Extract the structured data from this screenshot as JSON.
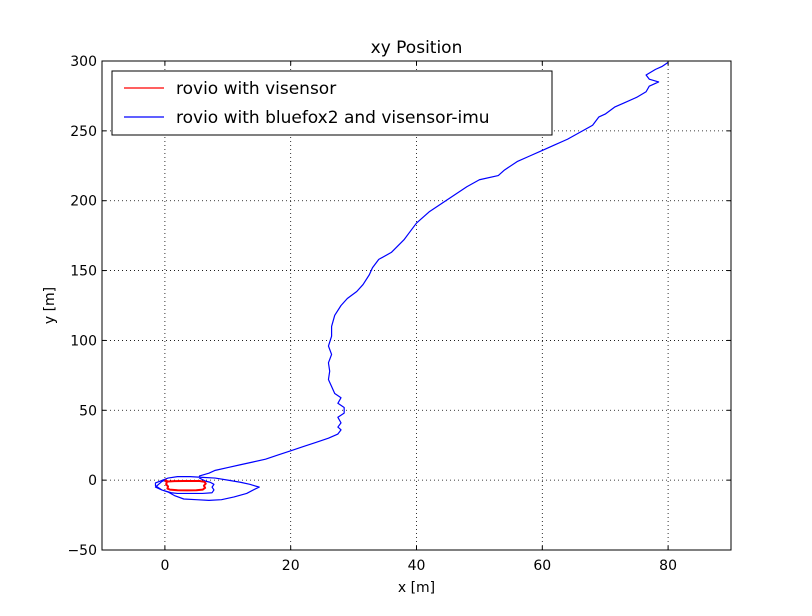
{
  "chart_data": {
    "type": "line",
    "title": "xy Position",
    "xlabel": "x [m]",
    "ylabel": "y [m]",
    "xlim": [
      -10,
      90
    ],
    "ylim": [
      -50,
      300
    ],
    "xticks": [
      0,
      20,
      40,
      60,
      80
    ],
    "yticks": [
      -50,
      0,
      50,
      100,
      150,
      200,
      250,
      300
    ],
    "xtick_labels": [
      "0",
      "20",
      "40",
      "60",
      "80"
    ],
    "ytick_labels": [
      "−50",
      "0",
      "50",
      "100",
      "150",
      "200",
      "250",
      "300"
    ],
    "grid": true,
    "legend_position": "top-left",
    "series": [
      {
        "name": "rovio with visensor",
        "color": "#ff0000",
        "points": [
          [
            0,
            0
          ],
          [
            0.3,
            -1.5
          ],
          [
            0.2,
            -3
          ],
          [
            0.5,
            -4.5
          ],
          [
            0.4,
            -6
          ],
          [
            0.8,
            -6.8
          ],
          [
            2,
            -7.2
          ],
          [
            3.5,
            -7.3
          ],
          [
            5,
            -7.2
          ],
          [
            6,
            -6.8
          ],
          [
            6.4,
            -5.5
          ],
          [
            6.2,
            -4
          ],
          [
            6.5,
            -2.5
          ],
          [
            6.3,
            -1.2
          ],
          [
            5.5,
            -0.6
          ],
          [
            4.5,
            -0.6
          ],
          [
            3,
            -0.6
          ],
          [
            1.5,
            -0.7
          ],
          [
            0.5,
            -1
          ],
          [
            0,
            0
          ]
        ]
      },
      {
        "name": "rovio with bluefox2 and visensor-imu",
        "color": "#0000ff",
        "points": [
          [
            0,
            0
          ],
          [
            -0.5,
            -1
          ],
          [
            -1,
            -3
          ],
          [
            -1.5,
            -5
          ],
          [
            -0.5,
            -7
          ],
          [
            0.5,
            -8.5
          ],
          [
            1.5,
            -11
          ],
          [
            3,
            -13.5
          ],
          [
            5,
            -14
          ],
          [
            7,
            -14.5
          ],
          [
            9,
            -14
          ],
          [
            11,
            -12
          ],
          [
            13,
            -9.5
          ],
          [
            14.5,
            -6
          ],
          [
            15,
            -5
          ],
          [
            13.5,
            -3
          ],
          [
            12,
            -1.5
          ],
          [
            10,
            0
          ],
          [
            8,
            1.5
          ],
          [
            6,
            2
          ],
          [
            4,
            2.5
          ],
          [
            2,
            2.5
          ],
          [
            0.5,
            1.5
          ],
          [
            -1.5,
            -2
          ],
          [
            -1.5,
            -4
          ],
          [
            -0.5,
            -7
          ],
          [
            1,
            -9
          ],
          [
            2,
            -9.5
          ],
          [
            4,
            -9.5
          ],
          [
            6,
            -9.5
          ],
          [
            7.5,
            -9
          ],
          [
            7.8,
            -7
          ],
          [
            7.5,
            -5
          ],
          [
            7.8,
            -3
          ],
          [
            7.2,
            -1.5
          ],
          [
            6.5,
            -0.8
          ],
          [
            5.5,
            1.5
          ],
          [
            5.5,
            3
          ],
          [
            7,
            5
          ],
          [
            8,
            7
          ],
          [
            10,
            9
          ],
          [
            12,
            11
          ],
          [
            14,
            13
          ],
          [
            16,
            15
          ],
          [
            18,
            18
          ],
          [
            20,
            21
          ],
          [
            22,
            24
          ],
          [
            24,
            27
          ],
          [
            26,
            30
          ],
          [
            27.5,
            33
          ],
          [
            28,
            36
          ],
          [
            27.5,
            38
          ],
          [
            28,
            41
          ],
          [
            27.5,
            45
          ],
          [
            28.5,
            48
          ],
          [
            28.5,
            52
          ],
          [
            27.5,
            55
          ],
          [
            28,
            59
          ],
          [
            27,
            62
          ],
          [
            26.5,
            67
          ],
          [
            26,
            72
          ],
          [
            26.2,
            78
          ],
          [
            26,
            84
          ],
          [
            26.5,
            90
          ],
          [
            26,
            96
          ],
          [
            26.5,
            103
          ],
          [
            26.5,
            110
          ],
          [
            27,
            118
          ],
          [
            28,
            125
          ],
          [
            29,
            130
          ],
          [
            30.5,
            135
          ],
          [
            31.5,
            140
          ],
          [
            32.5,
            147
          ],
          [
            33,
            152
          ],
          [
            34,
            158
          ],
          [
            36,
            163
          ],
          [
            38,
            172
          ],
          [
            39,
            178
          ],
          [
            40,
            184
          ],
          [
            42,
            192
          ],
          [
            44,
            198
          ],
          [
            46,
            204
          ],
          [
            48,
            210
          ],
          [
            50,
            215
          ],
          [
            53,
            218
          ],
          [
            54,
            222
          ],
          [
            56,
            228
          ],
          [
            58,
            232
          ],
          [
            60,
            236
          ],
          [
            62,
            240
          ],
          [
            64,
            244
          ],
          [
            66,
            249
          ],
          [
            68,
            254
          ],
          [
            69,
            260
          ],
          [
            70,
            262
          ],
          [
            71.5,
            267
          ],
          [
            73,
            270
          ],
          [
            75,
            274
          ],
          [
            76.5,
            278
          ],
          [
            77,
            282
          ],
          [
            78.5,
            285
          ],
          [
            77,
            287
          ],
          [
            76.5,
            290
          ],
          [
            78,
            294
          ],
          [
            79,
            296
          ],
          [
            80,
            299
          ]
        ]
      }
    ]
  }
}
